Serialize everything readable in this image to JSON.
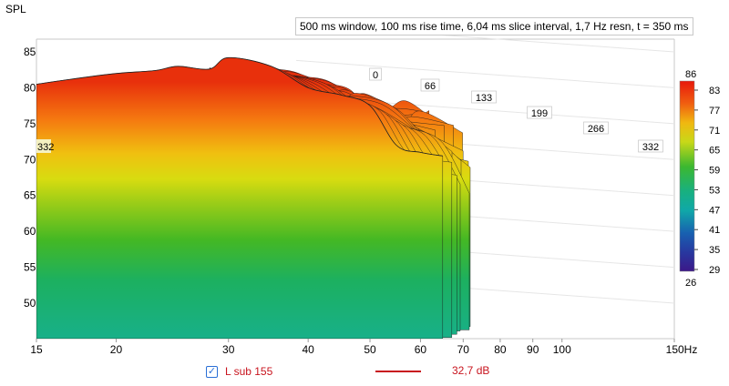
{
  "info_text": "500 ms window, 100 ms rise time, 6,04 ms slice interval, 1,7 Hz resn, t = 350 ms",
  "colors": {
    "trace": "#c8141e",
    "checkbox": "#2a6fd6"
  },
  "legend": {
    "checked": true,
    "check_icon": "✓",
    "name": "L sub 155",
    "value": "32,7 dB"
  },
  "chart_data": {
    "type": "area",
    "subtype": "waterfall-3d",
    "title": "",
    "ylabel": "SPL",
    "xlabel": "Hz",
    "x_scale": "log",
    "xlim": [
      15,
      150
    ],
    "ylim": [
      45,
      87
    ],
    "x_ticks": [
      "15",
      "20",
      "30",
      "40",
      "50",
      "60",
      "70",
      "80",
      "90",
      "100",
      "150Hz"
    ],
    "y_ticks": [
      "50",
      "55",
      "60",
      "65",
      "70",
      "75",
      "80",
      "85"
    ],
    "time_axis_ms": [
      "0",
      "66",
      "133",
      "199",
      "266",
      "332"
    ],
    "colorbar": {
      "label_top": "86",
      "label_bottom": "26",
      "ticks": [
        "83",
        "77",
        "71",
        "65",
        "59",
        "53",
        "47",
        "41",
        "35",
        "29"
      ]
    },
    "series": [
      {
        "x": [
          15,
          17,
          20,
          23,
          25,
          28,
          30,
          35,
          40,
          45,
          50,
          55,
          60,
          65
        ],
        "y": [
          80.5,
          81.2,
          82,
          82.4,
          83,
          82.6,
          84.2,
          83,
          80,
          79,
          77.5,
          72,
          71,
          70.5
        ]
      }
    ]
  }
}
